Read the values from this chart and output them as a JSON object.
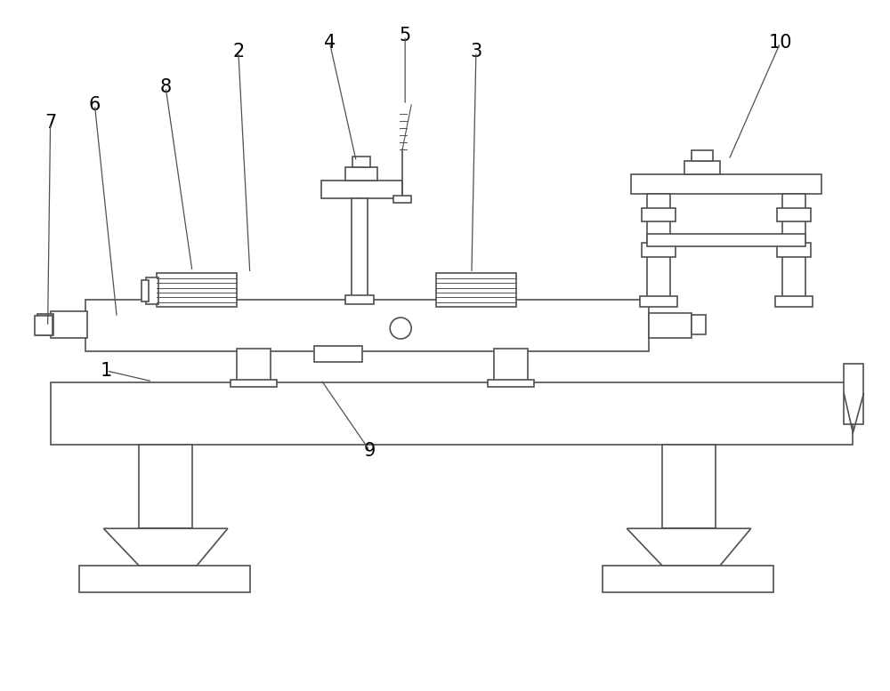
{
  "bg_color": "#ffffff",
  "line_color": "#505050",
  "lw": 1.2
}
